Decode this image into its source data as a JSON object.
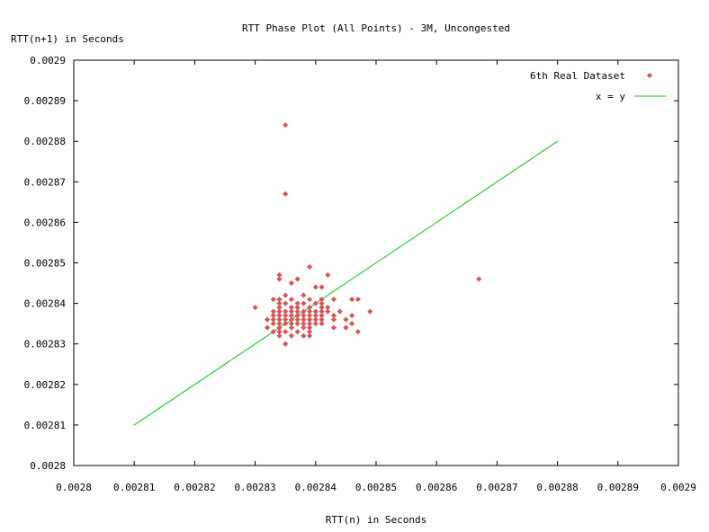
{
  "chart_data": {
    "type": "scatter",
    "title": "RTT Phase Plot (All Points) - 3M, Uncongested",
    "xlabel": "RTT(n) in Seconds",
    "ylabel": "RTT(n+1) in Seconds",
    "xlim": [
      0.0028,
      0.0029
    ],
    "ylim": [
      0.0028,
      0.0029
    ],
    "xticks": [
      0.0028,
      0.00281,
      0.00282,
      0.00283,
      0.00284,
      0.00285,
      0.00286,
      0.00287,
      0.00288,
      0.00289,
      0.0029
    ],
    "yticks": [
      0.0028,
      0.00281,
      0.00282,
      0.00283,
      0.00284,
      0.00285,
      0.00286,
      0.00287,
      0.00288,
      0.00289,
      0.0029
    ],
    "xtick_labels": [
      "0.0028",
      "0.00281",
      "0.00282",
      "0.00283",
      "0.00284",
      "0.00285",
      "0.00286",
      "0.00287",
      "0.00288",
      "0.00289",
      "0.0029"
    ],
    "ytick_labels": [
      "0.0028",
      "0.00281",
      "0.00282",
      "0.00283",
      "0.00284",
      "0.00285",
      "0.00286",
      "0.00287",
      "0.00288",
      "0.00289",
      "0.0029"
    ],
    "grid": false,
    "legend_position": "top-right",
    "series": [
      {
        "name": "6th Real Dataset",
        "kind": "points",
        "color": "#e05050",
        "points": [
          [
            0.002835,
            0.002884
          ],
          [
            0.002835,
            0.002867
          ],
          [
            0.002867,
            0.002846
          ],
          [
            0.002839,
            0.002849
          ],
          [
            0.00283,
            0.002839
          ],
          [
            0.002842,
            0.002847
          ],
          [
            0.002849,
            0.002838
          ],
          [
            0.002834,
            0.002847
          ],
          [
            0.002834,
            0.002846
          ],
          [
            0.002836,
            0.002845
          ],
          [
            0.002837,
            0.002846
          ],
          [
            0.00284,
            0.002844
          ],
          [
            0.002841,
            0.002844
          ],
          [
            0.002835,
            0.002842
          ],
          [
            0.002838,
            0.002842
          ],
          [
            0.002833,
            0.002841
          ],
          [
            0.002834,
            0.002841
          ],
          [
            0.002836,
            0.002841
          ],
          [
            0.002839,
            0.002841
          ],
          [
            0.002841,
            0.002841
          ],
          [
            0.002843,
            0.002841
          ],
          [
            0.002846,
            0.002841
          ],
          [
            0.002847,
            0.002841
          ],
          [
            0.002834,
            0.00284
          ],
          [
            0.002835,
            0.00284
          ],
          [
            0.002837,
            0.00284
          ],
          [
            0.002838,
            0.00284
          ],
          [
            0.00284,
            0.00284
          ],
          [
            0.002841,
            0.00284
          ],
          [
            0.002834,
            0.002839
          ],
          [
            0.002836,
            0.002839
          ],
          [
            0.002837,
            0.002839
          ],
          [
            0.002839,
            0.002839
          ],
          [
            0.002841,
            0.002839
          ],
          [
            0.002842,
            0.002839
          ],
          [
            0.002833,
            0.002838
          ],
          [
            0.002834,
            0.002838
          ],
          [
            0.002835,
            0.002838
          ],
          [
            0.002836,
            0.002838
          ],
          [
            0.002837,
            0.002838
          ],
          [
            0.002838,
            0.002838
          ],
          [
            0.002839,
            0.002838
          ],
          [
            0.00284,
            0.002838
          ],
          [
            0.002841,
            0.002838
          ],
          [
            0.002842,
            0.002838
          ],
          [
            0.002844,
            0.002838
          ],
          [
            0.002833,
            0.002837
          ],
          [
            0.002834,
            0.002837
          ],
          [
            0.002835,
            0.002837
          ],
          [
            0.002836,
            0.002837
          ],
          [
            0.002837,
            0.002837
          ],
          [
            0.002838,
            0.002837
          ],
          [
            0.002839,
            0.002837
          ],
          [
            0.00284,
            0.002837
          ],
          [
            0.002841,
            0.002837
          ],
          [
            0.002843,
            0.002837
          ],
          [
            0.002846,
            0.002837
          ],
          [
            0.002832,
            0.002836
          ],
          [
            0.002833,
            0.002836
          ],
          [
            0.002834,
            0.002836
          ],
          [
            0.002835,
            0.002836
          ],
          [
            0.002836,
            0.002836
          ],
          [
            0.002837,
            0.002836
          ],
          [
            0.002838,
            0.002836
          ],
          [
            0.002839,
            0.002836
          ],
          [
            0.00284,
            0.002836
          ],
          [
            0.002841,
            0.002836
          ],
          [
            0.002843,
            0.002836
          ],
          [
            0.002845,
            0.002836
          ],
          [
            0.002833,
            0.002835
          ],
          [
            0.002834,
            0.002835
          ],
          [
            0.002835,
            0.002835
          ],
          [
            0.002836,
            0.002835
          ],
          [
            0.002837,
            0.002835
          ],
          [
            0.002838,
            0.002835
          ],
          [
            0.002839,
            0.002835
          ],
          [
            0.00284,
            0.002835
          ],
          [
            0.002841,
            0.002835
          ],
          [
            0.002846,
            0.002835
          ],
          [
            0.002832,
            0.002834
          ],
          [
            0.002834,
            0.002834
          ],
          [
            0.002836,
            0.002834
          ],
          [
            0.002838,
            0.002834
          ],
          [
            0.002839,
            0.002834
          ],
          [
            0.002843,
            0.002834
          ],
          [
            0.002845,
            0.002834
          ],
          [
            0.002833,
            0.002833
          ],
          [
            0.002834,
            0.002833
          ],
          [
            0.002835,
            0.002833
          ],
          [
            0.002837,
            0.002833
          ],
          [
            0.002839,
            0.002833
          ],
          [
            0.002847,
            0.002833
          ],
          [
            0.002834,
            0.002832
          ],
          [
            0.002836,
            0.002832
          ],
          [
            0.002838,
            0.002832
          ],
          [
            0.002839,
            0.002832
          ],
          [
            0.002835,
            0.00283
          ]
        ]
      },
      {
        "name": "x = y",
        "kind": "line",
        "color": "#00cc00",
        "points": [
          [
            0.00281,
            0.00281
          ],
          [
            0.00288,
            0.00288
          ]
        ]
      }
    ]
  }
}
